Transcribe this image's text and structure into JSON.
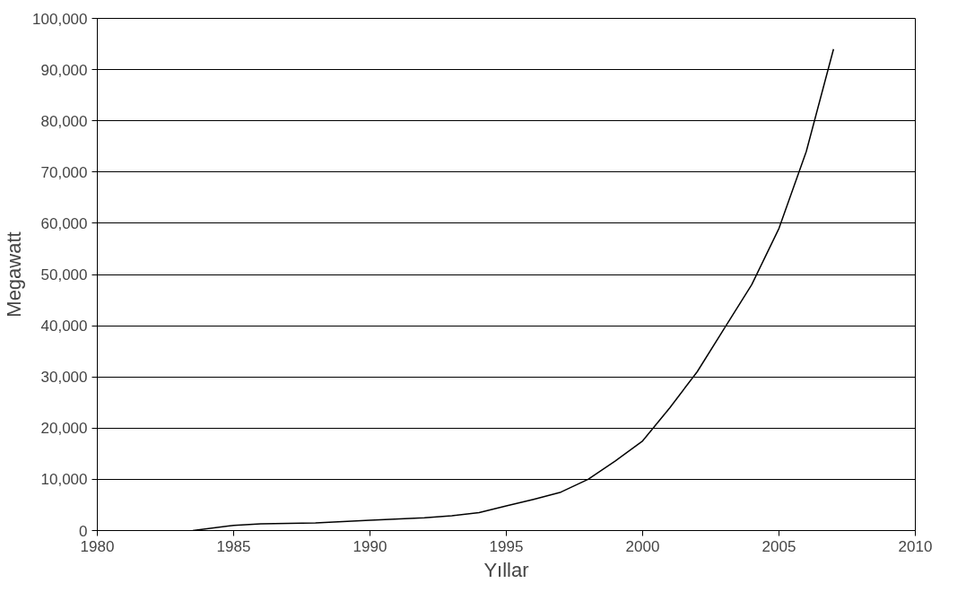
{
  "chart_data": {
    "type": "line",
    "xlabel": "Yıllar",
    "ylabel": "Megawatt",
    "x": [
      1983.5,
      1985,
      1986,
      1988,
      1990,
      1992,
      1993,
      1994,
      1995,
      1996,
      1997,
      1998,
      1999,
      2000,
      2001,
      2002,
      2003,
      2004,
      2005,
      2006,
      2007
    ],
    "series": [
      {
        "color": "#000000",
        "values": [
          0,
          1000,
          1300,
          1500,
          2000,
          2500,
          2900,
          3500,
          4800,
          6100,
          7500,
          10000,
          13600,
          17500,
          24000,
          31000,
          39500,
          48000,
          59000,
          74000,
          94000
        ]
      }
    ],
    "xlim": [
      1980,
      2010
    ],
    "xticks": [
      1980,
      1985,
      1990,
      1995,
      2000,
      2005,
      2010
    ],
    "ylim": [
      0,
      100000
    ],
    "yticks": [
      {
        "value": 0,
        "label": "0"
      },
      {
        "value": 10000,
        "label": "10,000"
      },
      {
        "value": 20000,
        "label": "20,000"
      },
      {
        "value": 30000,
        "label": "30,000"
      },
      {
        "value": 40000,
        "label": "40,000"
      },
      {
        "value": 50000,
        "label": "50,000"
      },
      {
        "value": 60000,
        "label": "60,000"
      },
      {
        "value": 70000,
        "label": "70,000"
      },
      {
        "value": 80000,
        "label": "80,000"
      },
      {
        "value": 90000,
        "label": "90,000"
      },
      {
        "value": 100000,
        "label": "100,000"
      }
    ],
    "grid": "y",
    "marker": "none",
    "line_style": "solid"
  }
}
